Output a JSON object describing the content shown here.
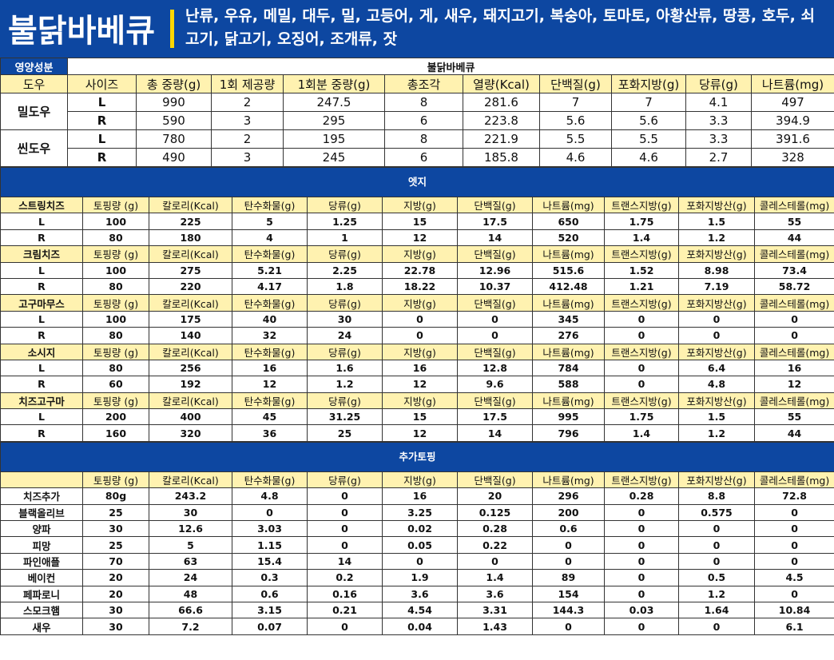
{
  "header": {
    "title": "불닭바베큐",
    "allergy": "난류, 우유, 메밀, 대두, 밀, 고등어, 게, 새우, 돼지고기, 복숭아, 토마토, 아황산류, 땅콩, 호두, 쇠고기, 닭고기, 오징어, 조개류, 잣"
  },
  "nutrition_label": "영양성분",
  "product": "불닭바베큐",
  "pizza": {
    "headers": [
      "도우",
      "사이즈",
      "총 중량(g)",
      "1회 제공량",
      "1회분 중량(g)",
      "총조각",
      "열량(Kcal)",
      "단백질(g)",
      "포화지방(g)",
      "당류(g)",
      "나트륨(mg)"
    ],
    "groups": [
      {
        "dough": "밀도우",
        "rows": [
          [
            "L",
            "990",
            "2",
            "247.5",
            "8",
            "281.6",
            "7",
            "7",
            "4.1",
            "497"
          ],
          [
            "R",
            "590",
            "3",
            "295",
            "6",
            "223.8",
            "5.6",
            "5.6",
            "3.3",
            "394.9"
          ]
        ]
      },
      {
        "dough": "씬도우",
        "rows": [
          [
            "L",
            "780",
            "2",
            "195",
            "8",
            "221.9",
            "5.5",
            "5.5",
            "3.3",
            "391.6"
          ],
          [
            "R",
            "490",
            "3",
            "245",
            "6",
            "185.8",
            "4.6",
            "4.6",
            "2.7",
            "328"
          ]
        ]
      }
    ]
  },
  "edge": {
    "title": "엣지",
    "columns": [
      "토핑량 (g)",
      "칼로리(Kcal)",
      "탄수화물(g)",
      "당류(g)",
      "지방(g)",
      "단백질(g)",
      "나트륨(mg)",
      "트랜스지방(g)",
      "포화지방산(g)",
      "콜레스테롤(mg)"
    ],
    "groups": [
      {
        "name": "스트링치즈",
        "rows": [
          [
            "L",
            "100",
            "225",
            "5",
            "1.25",
            "15",
            "17.5",
            "650",
            "1.75",
            "1.5",
            "55"
          ],
          [
            "R",
            "80",
            "180",
            "4",
            "1",
            "12",
            "14",
            "520",
            "1.4",
            "1.2",
            "44"
          ]
        ]
      },
      {
        "name": "크림치즈",
        "rows": [
          [
            "L",
            "100",
            "275",
            "5.21",
            "2.25",
            "22.78",
            "12.96",
            "515.6",
            "1.52",
            "8.98",
            "73.4"
          ],
          [
            "R",
            "80",
            "220",
            "4.17",
            "1.8",
            "18.22",
            "10.37",
            "412.48",
            "1.21",
            "7.19",
            "58.72"
          ]
        ]
      },
      {
        "name": "고구마무스",
        "rows": [
          [
            "L",
            "100",
            "175",
            "40",
            "30",
            "0",
            "0",
            "345",
            "0",
            "0",
            "0"
          ],
          [
            "R",
            "80",
            "140",
            "32",
            "24",
            "0",
            "0",
            "276",
            "0",
            "0",
            "0"
          ]
        ]
      },
      {
        "name": "소시지",
        "rows": [
          [
            "L",
            "80",
            "256",
            "16",
            "1.6",
            "16",
            "12.8",
            "784",
            "0",
            "6.4",
            "16"
          ],
          [
            "R",
            "60",
            "192",
            "12",
            "1.2",
            "12",
            "9.6",
            "588",
            "0",
            "4.8",
            "12"
          ]
        ]
      },
      {
        "name": "치즈고구마",
        "rows": [
          [
            "L",
            "200",
            "400",
            "45",
            "31.25",
            "15",
            "17.5",
            "995",
            "1.75",
            "1.5",
            "55"
          ],
          [
            "R",
            "160",
            "320",
            "36",
            "25",
            "12",
            "14",
            "796",
            "1.4",
            "1.2",
            "44"
          ]
        ]
      }
    ]
  },
  "topping": {
    "title": "추가토핑",
    "columns": [
      "토핑량 (g)",
      "칼로리(Kcal)",
      "탄수화물(g)",
      "당류(g)",
      "지방(g)",
      "단백질(g)",
      "나트륨(mg)",
      "트랜스지방(g)",
      "포화지방산(g)",
      "콜레스테롤(mg)"
    ],
    "rows": [
      [
        "치즈추가",
        "80g",
        "243.2",
        "4.8",
        "0",
        "16",
        "20",
        "296",
        "0.28",
        "8.8",
        "72.8"
      ],
      [
        "블랙올리브",
        "25",
        "30",
        "0",
        "0",
        "3.25",
        "0.125",
        "200",
        "0",
        "0.575",
        "0"
      ],
      [
        "양파",
        "30",
        "12.6",
        "3.03",
        "0",
        "0.02",
        "0.28",
        "0.6",
        "0",
        "0",
        "0"
      ],
      [
        "피망",
        "25",
        "5",
        "1.15",
        "0",
        "0.05",
        "0.22",
        "0",
        "0",
        "0",
        "0"
      ],
      [
        "파인애플",
        "70",
        "63",
        "15.4",
        "14",
        "0",
        "0",
        "0",
        "0",
        "0",
        "0"
      ],
      [
        "베이컨",
        "20",
        "24",
        "0.3",
        "0.2",
        "1.9",
        "1.4",
        "89",
        "0",
        "0.5",
        "4.5"
      ],
      [
        "페파로니",
        "20",
        "48",
        "0.6",
        "0.16",
        "3.6",
        "3.6",
        "154",
        "0",
        "1.2",
        "0"
      ],
      [
        "스모크햄",
        "30",
        "66.6",
        "3.15",
        "0.21",
        "4.54",
        "3.31",
        "144.3",
        "0.03",
        "1.64",
        "10.84"
      ],
      [
        "새우",
        "30",
        "7.2",
        "0.07",
        "0",
        "0.04",
        "1.43",
        "0",
        "0",
        "0",
        "6.1"
      ]
    ]
  }
}
